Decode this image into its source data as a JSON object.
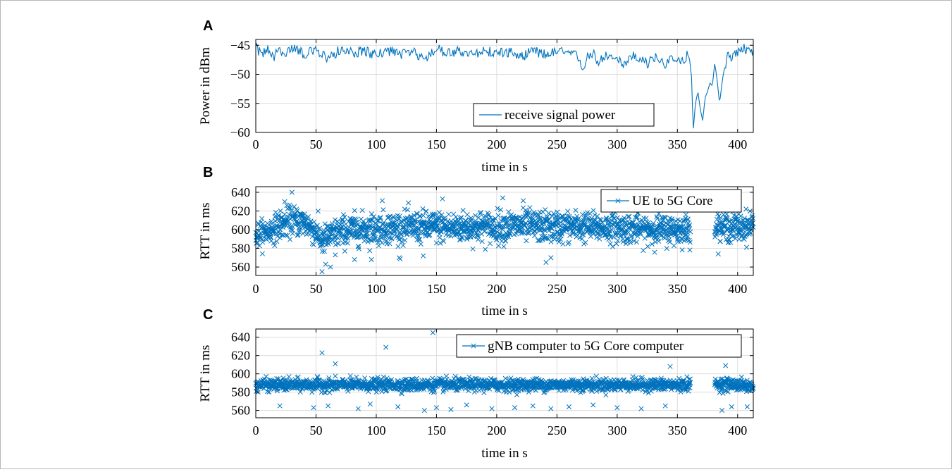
{
  "chart_data": [
    {
      "panel": "A",
      "type": "line",
      "xlabel": "time in s",
      "ylabel": "Power in dBm",
      "xlim": [
        0,
        413
      ],
      "ylim": [
        -60,
        -44
      ],
      "xticks": [
        0,
        50,
        100,
        150,
        200,
        250,
        300,
        350,
        400
      ],
      "yticks": [
        -60,
        -55,
        -50,
        -45
      ],
      "ytick_labels": [
        "−60",
        "−55",
        "−50",
        "−45"
      ],
      "grid": true,
      "legend_position": "lower-right",
      "color": "#0072bd",
      "series": [
        {
          "name": "receive signal power",
          "x": [
            0,
            5,
            10,
            15,
            20,
            25,
            30,
            40,
            50,
            60,
            70,
            80,
            90,
            100,
            110,
            120,
            130,
            140,
            150,
            160,
            170,
            180,
            190,
            200,
            210,
            220,
            230,
            240,
            250,
            260,
            266,
            270,
            272,
            275,
            280,
            285,
            290,
            295,
            300,
            305,
            310,
            315,
            320,
            325,
            330,
            335,
            340,
            345,
            350,
            355,
            358,
            360,
            362,
            363,
            365,
            367,
            369,
            371,
            373,
            375,
            377,
            379,
            381,
            383,
            385,
            388,
            392,
            396,
            400,
            405,
            410,
            413
          ],
          "y": [
            -45.5,
            -46.5,
            -45.8,
            -47,
            -45.6,
            -46.8,
            -45.2,
            -46.5,
            -46.0,
            -47.2,
            -45.8,
            -46.3,
            -46.0,
            -46.7,
            -45.9,
            -46.5,
            -46.2,
            -47.2,
            -45.6,
            -46.4,
            -46.0,
            -46.8,
            -45.9,
            -46.3,
            -46.2,
            -47.0,
            -46.0,
            -46.6,
            -46.1,
            -46.5,
            -46.8,
            -48.0,
            -49.0,
            -47.0,
            -46.5,
            -47.8,
            -46.8,
            -47.5,
            -47.0,
            -48.2,
            -47.2,
            -46.8,
            -47.5,
            -48.3,
            -47.0,
            -47.5,
            -48.2,
            -47.6,
            -48.0,
            -47.8,
            -46.5,
            -47.2,
            -51.0,
            -60.0,
            -55.0,
            -53.0,
            -56.0,
            -58.0,
            -54.0,
            -53.0,
            -51.5,
            -52.0,
            -48.0,
            -51.0,
            -55.0,
            -50.0,
            -46.5,
            -47.0,
            -46.0,
            -45.5,
            -46.2,
            -45.8
          ]
        }
      ]
    },
    {
      "panel": "B",
      "type": "scatter",
      "xlabel": "time in s",
      "ylabel": "RTT in ms",
      "xlim": [
        0,
        413
      ],
      "ylim": [
        551,
        646
      ],
      "xticks": [
        0,
        50,
        100,
        150,
        200,
        250,
        300,
        350,
        400
      ],
      "yticks": [
        560,
        580,
        600,
        620,
        640
      ],
      "grid": true,
      "legend_position": "top-right",
      "marker": "x",
      "color": "#0072bd",
      "series": [
        {
          "name": "UE to 5G Core",
          "gap": [
            361,
            381
          ],
          "band": {
            "x": [
              0,
              10,
              20,
              30,
              40,
              50,
              55,
              60,
              70,
              80,
              90,
              100,
              110,
              120,
              130,
              140,
              150,
              160,
              170,
              180,
              190,
              200,
              210,
              220,
              230,
              240,
              250,
              260,
              270,
              280,
              290,
              300,
              310,
              320,
              330,
              340,
              350,
              361,
              381,
              390,
              400,
              413
            ],
            "center": [
              595,
              598,
              605,
              610,
              608,
              598,
              588,
              592,
              598,
              600,
              601,
              601,
              602,
              602,
              603,
              603,
              603,
              602,
              603,
              603,
              603,
              603,
              604,
              604,
              604,
              603,
              603,
              603,
              603,
              603,
              602,
              602,
              601,
              601,
              600,
              600,
              600,
              600,
              603,
              603,
              602,
              605
            ],
            "spread": [
              12,
              12,
              14,
              14,
              14,
              14,
              14,
              14,
              15,
              15,
              15,
              15,
              15,
              15,
              15,
              15,
              15,
              15,
              15,
              15,
              15,
              15,
              15,
              15,
              15,
              15,
              15,
              15,
              15,
              14,
              14,
              14,
              14,
              14,
              14,
              14,
              14,
              14,
              14,
              14,
              14,
              14
            ]
          },
          "outliers": {
            "x": [
              30,
              24,
              55,
              58,
              62,
              66,
              82,
              96,
              105,
              119,
              139,
              155,
              205,
              222,
              241,
              245
            ],
            "y": [
              640,
              630,
              555,
              563,
              560,
              573,
              568,
              568,
              631,
              570,
              572,
              633,
              634,
              631,
              565,
              570
            ]
          }
        }
      ]
    },
    {
      "panel": "C",
      "type": "scatter",
      "xlabel": "time in s",
      "ylabel": "RTT in ms",
      "xlim": [
        0,
        413
      ],
      "ylim": [
        552,
        649
      ],
      "xticks": [
        0,
        50,
        100,
        150,
        200,
        250,
        300,
        350,
        400
      ],
      "yticks": [
        560,
        580,
        600,
        620,
        640
      ],
      "grid": true,
      "legend_position": "top-right",
      "marker": "x",
      "color": "#0072bd",
      "series": [
        {
          "name": "gNB computer to 5G Core computer",
          "gap": [
            361,
            381
          ],
          "band": {
            "x": [
              0,
              50,
              100,
              150,
              200,
              250,
              300,
              350,
              361,
              381,
              400,
              413
            ],
            "center": [
              588,
              588,
              588,
              588,
              588,
              588,
              588,
              588,
              588,
              589,
              588,
              586
            ],
            "spread": [
              6,
              6,
              6,
              6,
              6,
              6,
              6,
              6,
              6,
              6,
              6,
              6
            ]
          },
          "outliers": {
            "x": [
              55,
              66,
              108,
              147,
              390,
              344,
              20,
              48,
              60,
              85,
              95,
              118,
              140,
              150,
              162,
              175,
              196,
              215,
              230,
              245,
              260,
              280,
              300,
              320,
              340,
              387,
              395,
              408
            ],
            "y": [
              623,
              611,
              629,
              645,
              609,
              608,
              565,
              563,
              565,
              562,
              567,
              564,
              560,
              563,
              561,
              566,
              562,
              563,
              565,
              562,
              564,
              566,
              563,
              562,
              565,
              560,
              564,
              564
            ]
          }
        }
      ]
    }
  ]
}
